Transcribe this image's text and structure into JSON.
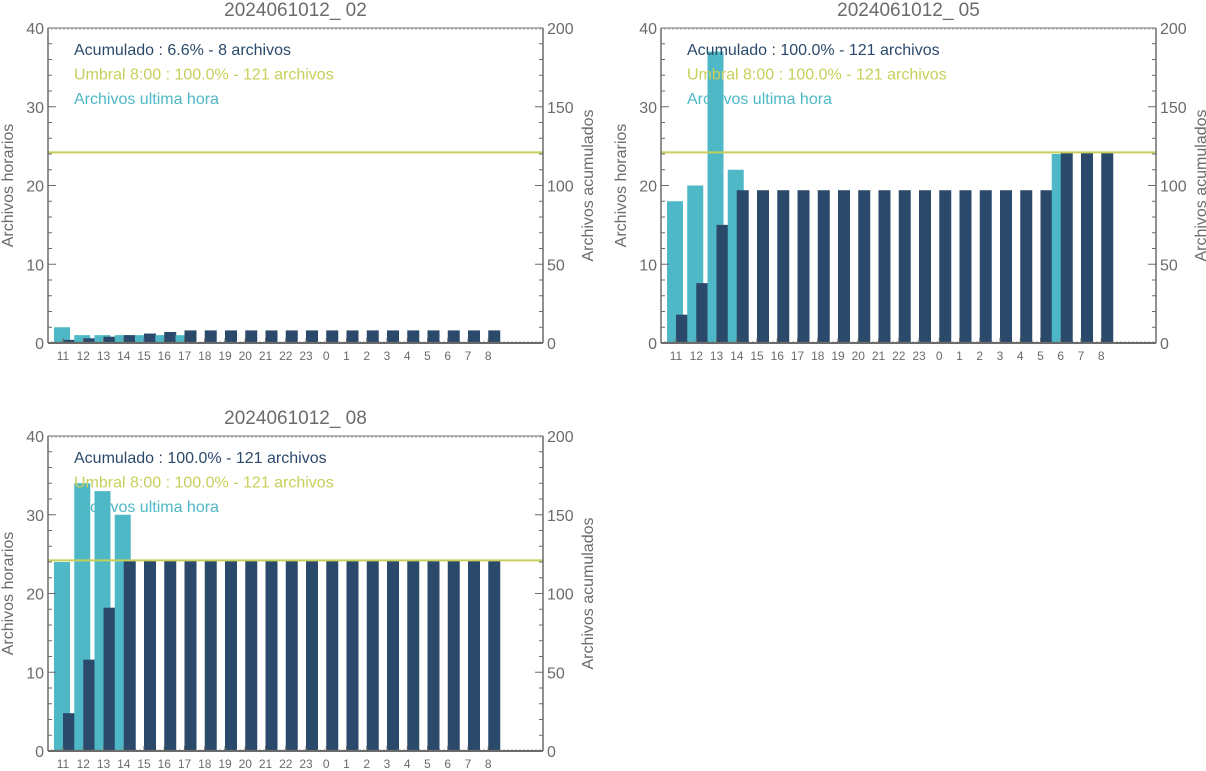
{
  "chart_data": [
    {
      "type": "bar",
      "title": "2024061012_ 02",
      "ylabel": "Archivos horarios",
      "y2label": "Archivos acumulados",
      "ylim": [
        0,
        40
      ],
      "y2lim": [
        0,
        200
      ],
      "yticks": [
        "0",
        "10",
        "20",
        "30",
        "40"
      ],
      "y2ticks": [
        "0",
        "50",
        "100",
        "150",
        "200"
      ],
      "categories": [
        "11",
        "12",
        "13",
        "14",
        "15",
        "16",
        "17",
        "18",
        "19",
        "20",
        "21",
        "22",
        "23",
        "0",
        "1",
        "2",
        "3",
        "4",
        "5",
        "6",
        "7",
        "8"
      ],
      "series": [
        {
          "name": "Archivos ultima hora",
          "axis": "left",
          "values": [
            2,
            1,
            1,
            1,
            1,
            1,
            1,
            0,
            0,
            0,
            0,
            0,
            0,
            0,
            0,
            0,
            0,
            0,
            0,
            0,
            0,
            0
          ]
        },
        {
          "name": "Acumulado",
          "axis": "right",
          "values": [
            2,
            3,
            4,
            5,
            6,
            7,
            8,
            8,
            8,
            8,
            8,
            8,
            8,
            8,
            8,
            8,
            8,
            8,
            8,
            8,
            8,
            8
          ]
        }
      ],
      "threshold": {
        "name": "Umbral 8:00",
        "axis": "right",
        "value": 121
      },
      "legend": [
        "Acumulado : 6.6% - 8 archivos",
        "Umbral 8:00 : 100.0% - 121 archivos",
        "Archivos ultima hora"
      ],
      "legend_position": "top-left"
    },
    {
      "type": "bar",
      "title": "2024061012_ 05",
      "ylabel": "Archivos horarios",
      "y2label": "Archivos acumulados",
      "ylim": [
        0,
        40
      ],
      "y2lim": [
        0,
        200
      ],
      "yticks": [
        "0",
        "10",
        "20",
        "30",
        "40"
      ],
      "y2ticks": [
        "0",
        "50",
        "100",
        "150",
        "200"
      ],
      "categories": [
        "11",
        "12",
        "13",
        "14",
        "15",
        "16",
        "17",
        "18",
        "19",
        "20",
        "21",
        "22",
        "23",
        "0",
        "1",
        "2",
        "3",
        "4",
        "5",
        "6",
        "7",
        "8"
      ],
      "series": [
        {
          "name": "Archivos ultima hora",
          "axis": "left",
          "values": [
            18,
            20,
            37,
            22,
            0,
            0,
            0,
            0,
            0,
            0,
            0,
            0,
            0,
            0,
            0,
            0,
            0,
            0,
            0,
            24,
            0,
            0
          ]
        },
        {
          "name": "Acumulado",
          "axis": "right",
          "values": [
            18,
            38,
            75,
            97,
            97,
            97,
            97,
            97,
            97,
            97,
            97,
            97,
            97,
            97,
            97,
            97,
            97,
            97,
            97,
            121,
            121,
            121
          ]
        }
      ],
      "threshold": {
        "name": "Umbral 8:00",
        "axis": "right",
        "value": 121
      },
      "legend": [
        "Acumulado : 100.0% - 121 archivos",
        "Umbral 8:00 : 100.0% - 121 archivos",
        "Archivos ultima hora"
      ],
      "legend_position": "top-left"
    },
    {
      "type": "bar",
      "title": "2024061012_ 08",
      "ylabel": "Archivos horarios",
      "y2label": "Archivos acumulados",
      "ylim": [
        0,
        40
      ],
      "y2lim": [
        0,
        200
      ],
      "yticks": [
        "0",
        "10",
        "20",
        "30",
        "40"
      ],
      "y2ticks": [
        "0",
        "50",
        "100",
        "150",
        "200"
      ],
      "categories": [
        "11",
        "12",
        "13",
        "14",
        "15",
        "16",
        "17",
        "18",
        "19",
        "20",
        "21",
        "22",
        "23",
        "0",
        "1",
        "2",
        "3",
        "4",
        "5",
        "6",
        "7",
        "8"
      ],
      "series": [
        {
          "name": "Archivos ultima hora",
          "axis": "left",
          "values": [
            24,
            34,
            33,
            30,
            0,
            0,
            0,
            0,
            0,
            0,
            0,
            0,
            0,
            0,
            0,
            0,
            0,
            0,
            0,
            0,
            0,
            0
          ]
        },
        {
          "name": "Acumulado",
          "axis": "right",
          "values": [
            24,
            58,
            91,
            121,
            121,
            121,
            121,
            121,
            121,
            121,
            121,
            121,
            121,
            121,
            121,
            121,
            121,
            121,
            121,
            121,
            121,
            121
          ]
        }
      ],
      "threshold": {
        "name": "Umbral 8:00",
        "axis": "right",
        "value": 121
      },
      "legend": [
        "Acumulado : 100.0% - 121 archivos",
        "Umbral 8:00 : 100.0% - 121 archivos",
        "Archivos ultima hora"
      ],
      "legend_position": "top-left"
    }
  ],
  "colors": {
    "hourly": "#4fb8c6",
    "cumulative": "#2b4a6b",
    "threshold": "#c8cf5a",
    "axis": "#6b6b6b"
  }
}
